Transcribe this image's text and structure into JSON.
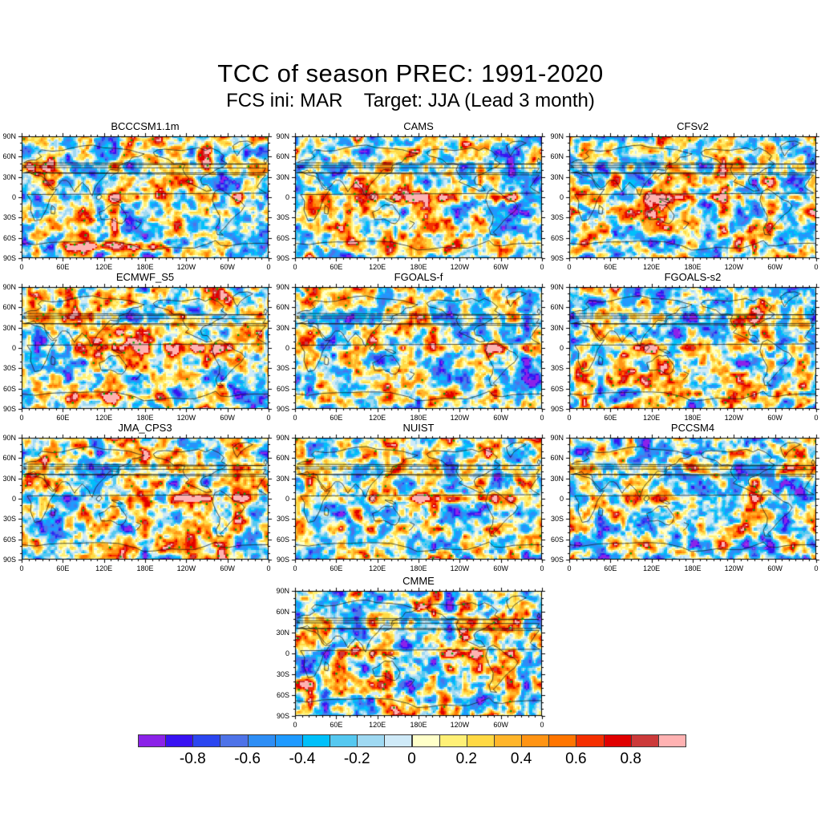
{
  "chart_data": {
    "type": "heatmap",
    "title": "TCC of season PREC: 1991-2020",
    "subtitle": "FCS ini: MAR    Target: JJA (Lead 3 month)",
    "map_projection": "global cylindrical equidistant, lon 0 to 360, lat 90N to 90S",
    "panels": [
      {
        "label": "BCCCSM1.1m",
        "seed": 3,
        "warm_bias": 0.0,
        "equator_band": 0.95,
        "antarctic_band": 1.0
      },
      {
        "label": "CAMS",
        "seed": 7,
        "warm_bias": 0.02,
        "equator_band": 1.05,
        "antarctic_band": 0
      },
      {
        "label": "CFSv2",
        "seed": 12,
        "warm_bias": 0.01,
        "equator_band": 0.9,
        "antarctic_band": 0.15
      },
      {
        "label": "ECMWF_S5",
        "seed": 21,
        "warm_bias": 0.09,
        "equator_band": 1.15,
        "antarctic_band": 0.5
      },
      {
        "label": "FGOALS-f",
        "seed": 33,
        "warm_bias": 0.0,
        "equator_band": 1.0,
        "antarctic_band": 0
      },
      {
        "label": "FGOALS-s2",
        "seed": 41,
        "warm_bias": -0.04,
        "equator_band": 0.85,
        "antarctic_band": 0
      },
      {
        "label": "JMA_CPS3",
        "seed": 52,
        "warm_bias": 0.05,
        "equator_band": 1.15,
        "antarctic_band": 0.35
      },
      {
        "label": "NUIST",
        "seed": 66,
        "warm_bias": 0.0,
        "equator_band": 1.05,
        "antarctic_band": 0
      },
      {
        "label": "PCCSM4",
        "seed": 74,
        "warm_bias": -0.02,
        "equator_band": 0.65,
        "antarctic_band": 0
      },
      {
        "label": "CMME",
        "seed": 88,
        "warm_bias": 0.03,
        "equator_band": 1.15,
        "antarctic_band": 0
      }
    ],
    "x_tick_labels": [
      "0",
      "60E",
      "120E",
      "180E",
      "120W",
      "60W",
      "0"
    ],
    "y_tick_labels": [
      "90N",
      "60N",
      "30N",
      "0",
      "30S",
      "60S",
      "90S"
    ],
    "colorbar": {
      "value_min": -1.0,
      "value_max": 1.0,
      "interval": 0.1,
      "tick_labels": [
        "-0.8",
        "-0.6",
        "-0.4",
        "-0.2",
        "0",
        "0.2",
        "0.4",
        "0.6",
        "0.8"
      ],
      "colors": [
        "#8B22E8",
        "#3812F2",
        "#2B46F0",
        "#4E73E8",
        "#2E8EF5",
        "#1E9AFF",
        "#00C0FA",
        "#55C8F0",
        "#9FD9F2",
        "#CFEAF8",
        "#FFFFC9",
        "#FFF076",
        "#FFD944",
        "#FFB52A",
        "#FF9414",
        "#FF7500",
        "#F52F00",
        "#E00000",
        "#CC3A3A",
        "#FFB2B2"
      ]
    },
    "stipple": {
      "positive_marker_color": "#0CA30C",
      "negative_marker_color": "#A63BE8"
    }
  }
}
